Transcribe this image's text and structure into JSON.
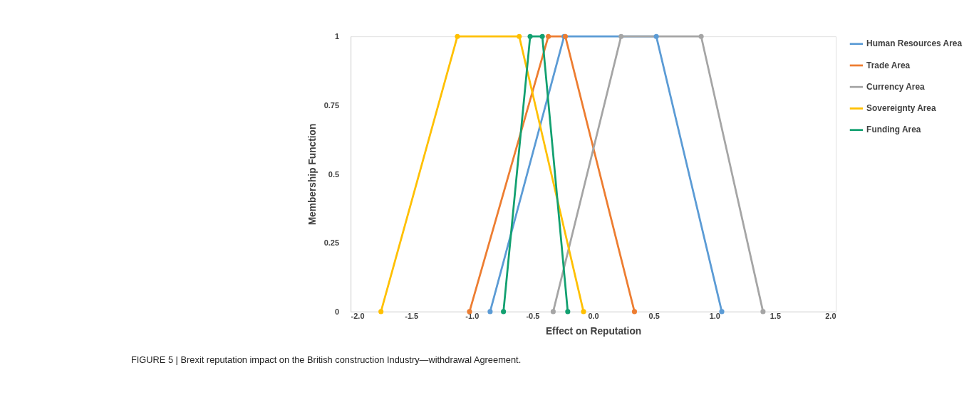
{
  "chart_data": {
    "type": "line",
    "xlabel": "Effect on Reputation",
    "ylabel": "Membership Function",
    "annotations": [
      "FIGURE 5 | Brexit reputation impact on the British construction Industry—withdrawal Agreement."
    ],
    "series": [
      {
        "name": "Human Resources Area",
        "color": "#5b9bd5",
        "x": [
          -0.85,
          -0.24,
          0.52,
          1.06
        ],
        "values": [
          0,
          1,
          1,
          0
        ]
      },
      {
        "name": "Trade Area",
        "color": "#ed7d31",
        "x": [
          -1.02,
          -0.37,
          -0.23,
          0.34
        ],
        "values": [
          0,
          1,
          1,
          0
        ]
      },
      {
        "name": "Currency Area",
        "color": "#a5a5a5",
        "x": [
          -0.33,
          0.23,
          0.89,
          1.4
        ],
        "values": [
          0,
          1,
          1,
          0
        ]
      },
      {
        "name": "Sovereignty Area",
        "color": "#ffc000",
        "x": [
          -1.75,
          -1.12,
          -0.61,
          -0.08
        ],
        "values": [
          0,
          1,
          1,
          0
        ]
      },
      {
        "name": "Funding Area",
        "color": "#12a070",
        "x": [
          -0.74,
          -0.52,
          -0.42,
          -0.21
        ],
        "values": [
          0,
          1,
          1,
          0
        ]
      }
    ],
    "xlim": [
      -2,
      2
    ],
    "xticks": [
      {
        "value": -2,
        "label": "-2.0"
      },
      {
        "value": -1.5,
        "label": "-1.5"
      },
      {
        "value": -1,
        "label": "-1.0"
      },
      {
        "value": -0.5,
        "label": "-0.5"
      },
      {
        "value": 0,
        "label": "0.0"
      },
      {
        "value": 0.5,
        "label": "0.5"
      },
      {
        "value": 1,
        "label": "1.0"
      },
      {
        "value": 1.5,
        "label": "1.5"
      },
      {
        "value": 2,
        "label": "2.0"
      }
    ],
    "ylim": [
      0,
      1
    ],
    "yticks": [
      0,
      0.25,
      0.5,
      0.75,
      1
    ],
    "grid": false,
    "legend": "right",
    "marker": "circle",
    "line_style": "solid"
  }
}
